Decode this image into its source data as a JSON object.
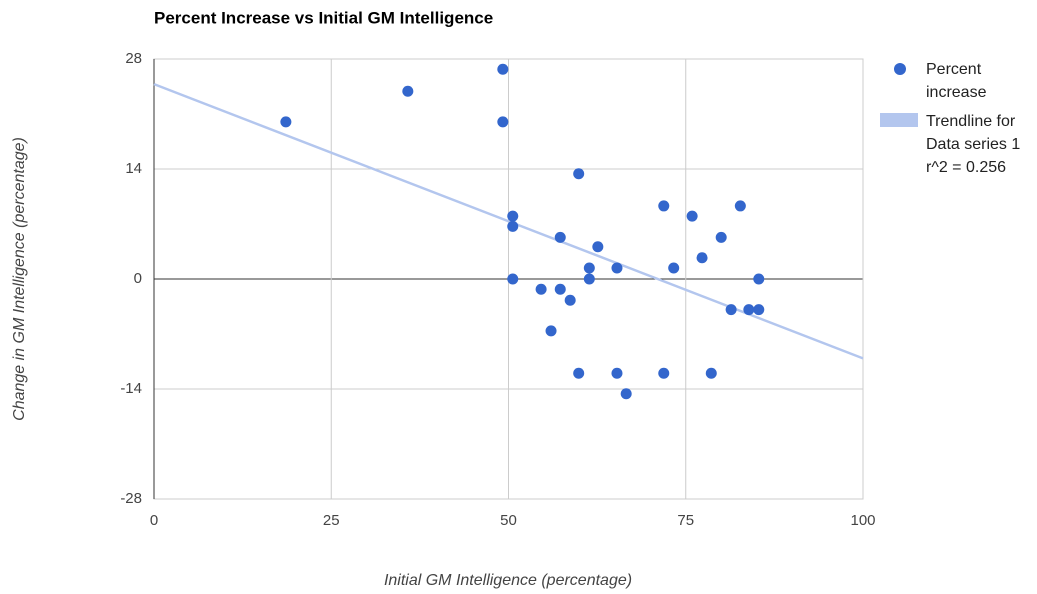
{
  "chart_data": {
    "type": "scatter",
    "title": "Percent Increase vs Initial GM Intelligence",
    "x_label": "Initial GM Intelligence (percentage)",
    "y_label": "Change in GM Intelligence (percentage)",
    "xlim": [
      0,
      100
    ],
    "xticks": [
      0,
      25,
      50,
      75,
      100
    ],
    "ylim": [
      -28,
      28
    ],
    "yticks": [
      -28,
      -14,
      0,
      14,
      28
    ],
    "grid": true,
    "legend": "right",
    "series": [
      {
        "name": "Percent increase",
        "color": "#3366cc",
        "x": [
          18.6,
          35.8,
          49.2,
          49.2,
          59.9,
          50.6,
          50.6,
          50.6,
          57.3,
          62.6,
          61.4,
          61.4,
          65.3,
          71.9,
          75.9,
          80.0,
          82.7,
          77.3,
          73.3,
          54.6,
          57.3,
          58.7,
          56.0,
          85.3,
          81.4,
          83.9,
          85.3,
          59.9,
          65.3,
          71.9,
          78.6,
          66.6
        ],
        "values": [
          20.0,
          23.9,
          26.7,
          20.0,
          13.4,
          8.0,
          6.7,
          0,
          5.3,
          4.1,
          1.4,
          0,
          1.4,
          9.3,
          8.0,
          5.3,
          9.3,
          2.7,
          1.4,
          -1.3,
          -1.3,
          -2.7,
          -6.6,
          0,
          -3.9,
          -3.9,
          -3.9,
          -12.0,
          -12.0,
          -12.0,
          -12.0,
          -14.6
        ]
      }
    ],
    "trendline": {
      "name": "Trendline for Data series 1 r^2 = 0.256",
      "color": "#b3c6ee",
      "x": [
        0,
        100
      ],
      "values": [
        24.8,
        -10.1
      ]
    }
  }
}
